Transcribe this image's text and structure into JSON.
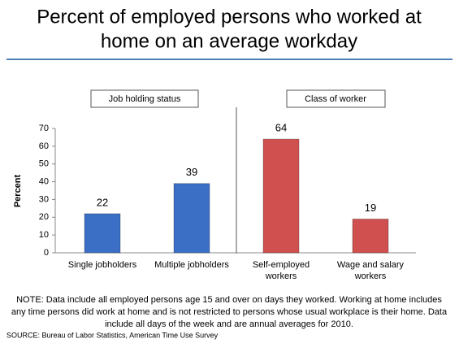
{
  "chart_data": {
    "type": "bar",
    "title_lines": [
      "Percent of employed persons who worked at",
      "home on an average workday"
    ],
    "ylabel": "Percent",
    "group_labels": [
      "Job holding status",
      "Class of worker"
    ],
    "categories": [
      "Single jobholders",
      "Multiple jobholders",
      "Self-employed workers",
      "Wage and salary workers"
    ],
    "values": [
      22,
      39,
      64,
      19
    ],
    "colors": [
      "#3b6fc6",
      "#3b6fc6",
      "#d05050",
      "#d05050"
    ],
    "ylim": [
      0,
      70
    ],
    "yticks": [
      0,
      10,
      20,
      30,
      40,
      50,
      60,
      70
    ],
    "grid": false
  },
  "note_lines": [
    "NOTE: Data include all employed persons age 15 and over on days they worked. Working at home includes",
    "any time persons did work at home and is not restricted to persons whose usual workplace is their home. Data",
    "include all days of the week and are annual averages for 2010."
  ],
  "source": "SOURCE: Bureau of Labor Statistics, American Time Use Survey"
}
